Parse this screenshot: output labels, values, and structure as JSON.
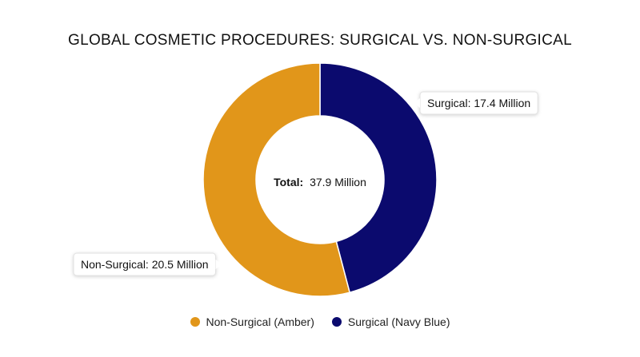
{
  "chart_data": {
    "type": "pie",
    "variant": "donut",
    "title": "GLOBAL COSMETIC PROCEDURES: SURGICAL VS. NON-SURGICAL",
    "center": {
      "label": "Total:",
      "value": "37.9 Million"
    },
    "unit": "Million",
    "series": [
      {
        "name": "Surgical",
        "value": 17.4,
        "color": "#0b0a6e",
        "callout": "Surgical: 17.4 Million",
        "legend": "Surgical (Navy Blue)"
      },
      {
        "name": "Non-Surgical",
        "value": 20.5,
        "color": "#e1961a",
        "callout": "Non-Surgical: 20.5 Million",
        "legend": "Non-Surgical (Amber)"
      }
    ],
    "legend_order": [
      "Non-Surgical",
      "Surgical"
    ],
    "legend_position": "bottom"
  }
}
